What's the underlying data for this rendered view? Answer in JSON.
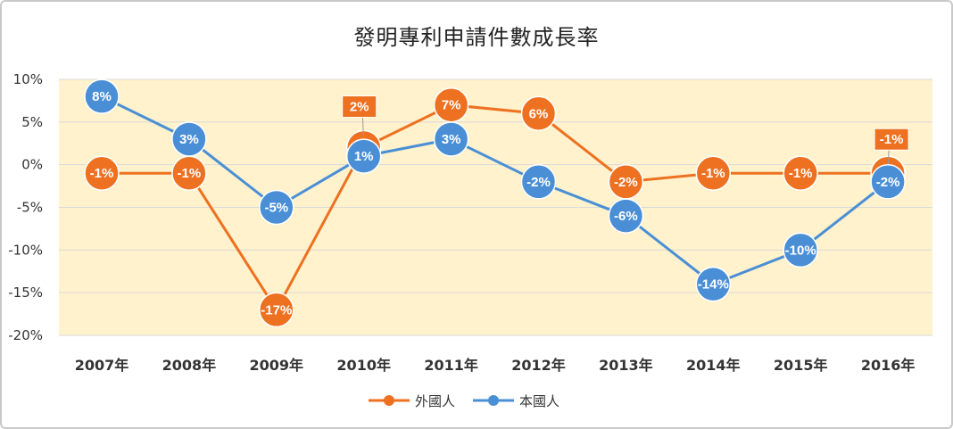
{
  "chart_data": {
    "type": "line",
    "title": "發明專利申請件數成長率",
    "x": [
      "2007年",
      "2008年",
      "2009年",
      "2010年",
      "2011年",
      "2012年",
      "2013年",
      "2014年",
      "2015年",
      "2016年"
    ],
    "ylim": [
      -20,
      10
    ],
    "yticks": [
      "10%",
      "5%",
      "0%",
      "-5%",
      "-10%",
      "-15%",
      "-20%"
    ],
    "ytick_values": [
      10,
      5,
      0,
      -5,
      -10,
      -15,
      -20
    ],
    "grid": true,
    "legend_position": "bottom",
    "series": [
      {
        "name": "外國人",
        "color": "#ED7120",
        "values": [
          -1,
          -1,
          -17,
          2,
          7,
          6,
          -2,
          -1,
          -1,
          -1
        ],
        "labels": [
          "-1%",
          "-1%",
          "-17%",
          "2%",
          "7%",
          "6%",
          "-2%",
          "-1%",
          "-1%",
          "-1%"
        ]
      },
      {
        "name": "本國人",
        "color": "#4A8FD6",
        "values": [
          8,
          3,
          -5,
          1,
          3,
          -2,
          -6,
          -14,
          -10,
          -2
        ],
        "labels": [
          "8%",
          "3%",
          "-5%",
          "1%",
          "3%",
          "-2%",
          "-6%",
          "-14%",
          "-10%",
          "-2%"
        ]
      }
    ]
  }
}
